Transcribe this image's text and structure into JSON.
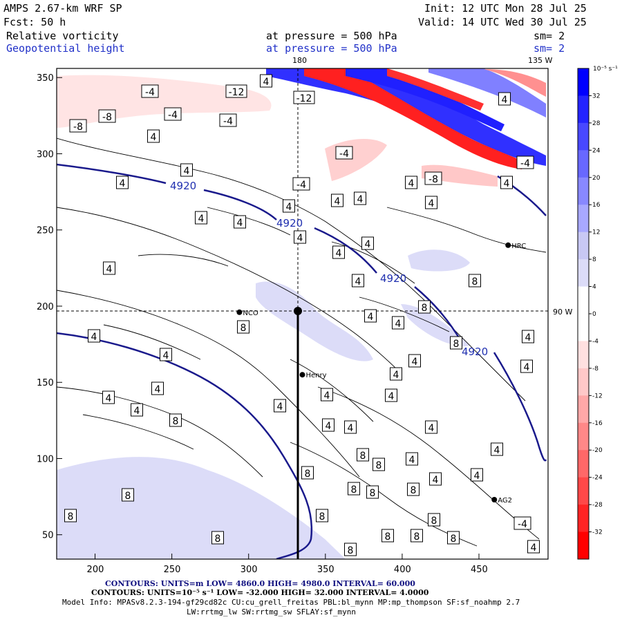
{
  "header": {
    "model": "AMPS 2.67-km WRF SP",
    "init": "Init: 12 UTC Mon 28 Jul 25",
    "forecast": "Fcst:    50 h",
    "valid": "Valid: 14 UTC Wed 30 Jul 25",
    "field1_name": "Relative vorticity",
    "field1_level": "at pressure =  500 hPa",
    "field1_sm": "sm= 2",
    "field2_name": "Geopotential height",
    "field2_level": "at pressure =  500 hPa",
    "field2_sm": "sm= 2"
  },
  "map": {
    "lon_labels": {
      "top_180": "180",
      "top_135w": "135 W",
      "right_90w": "90 W"
    },
    "x_ticks": [
      "200",
      "250",
      "300",
      "350",
      "400",
      "450"
    ],
    "y_ticks": [
      "350",
      "300",
      "250",
      "200",
      "150",
      "100",
      "50"
    ],
    "stations": [
      {
        "id": "NCO",
        "label": "NCO",
        "x": 294,
        "y": 196
      },
      {
        "id": "Henry",
        "label": "Henry",
        "x": 335,
        "y": 155
      },
      {
        "id": "HRC",
        "label": "HRC",
        "x": 469,
        "y": 240
      },
      {
        "id": "AG2",
        "label": "AG2",
        "x": 460,
        "y": 73
      }
    ],
    "height_contour_labels": [
      "4920",
      "4920",
      "4920",
      "4920"
    ],
    "colors": {
      "height_contour": "#1a1a8c",
      "positive": "#1010ff",
      "negative": "#ff1010",
      "grid": "#000000"
    }
  },
  "colorbar": {
    "units": "10⁻⁵ s⁻¹",
    "levels": [
      "32",
      "28",
      "24",
      "20",
      "16",
      "12",
      "8",
      "4",
      "0",
      "-4",
      "-8",
      "-12",
      "-16",
      "-20",
      "-24",
      "-28",
      "-32"
    ],
    "colors": [
      "#0000ff",
      "#2424ff",
      "#4848ff",
      "#6868ff",
      "#8888ff",
      "#a8a8ff",
      "#c8c8f4",
      "#dcdcf8",
      "#ffffff",
      "#ffffff",
      "#ffe0e0",
      "#ffc8c8",
      "#ffa8a8",
      "#ff8888",
      "#ff6868",
      "#ff4848",
      "#ff2424",
      "#ff0000"
    ]
  },
  "footer": {
    "line1": "CONTOURS:  UNITS=m  LOW=   4860.0          HIGH=  4980.0          INTERVAL=    60.000",
    "line2": "CONTOURS:  UNITS=10⁻⁵ s⁻¹   LOW=  -32.000          HIGH=   32.000          INTERVAL=    4.0000",
    "line3": "Model Info: MPASv8.2.3-194-gf29cd82c CU:cu_grell_freitas PBL:bl_mynn MP:mp_thompson SF:sf_noahmp 2.7",
    "line4": "LW:rrtmg_lw SW:rrtmg_sw SFLAY:sf_mynn"
  }
}
